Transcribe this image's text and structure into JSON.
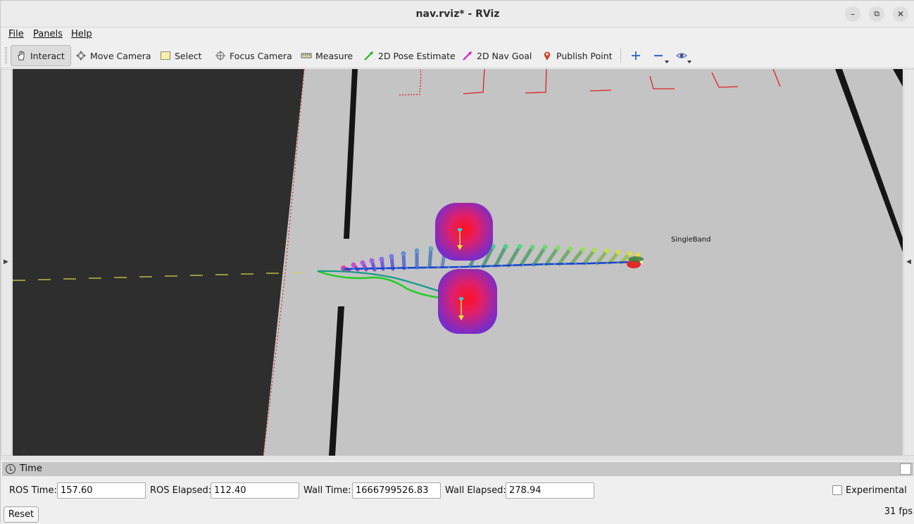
{
  "window": {
    "title": "nav.rviz* - RViz"
  },
  "menubar": {
    "items": [
      "File",
      "Panels",
      "Help"
    ]
  },
  "toolbar": {
    "interact": "Interact",
    "move_camera": "Move Camera",
    "select": "Select",
    "focus_camera": "Focus Camera",
    "measure": "Measure",
    "pose_estimate": "2D Pose Estimate",
    "nav_goal": "2D Nav Goal",
    "publish_point": "Publish Point"
  },
  "viewport": {
    "marker_label": "SingleBand"
  },
  "time_panel": {
    "title": "Time",
    "ros_time_label": "ROS Time:",
    "ros_time": "157.60",
    "ros_elapsed_label": "ROS Elapsed:",
    "ros_elapsed": "112.40",
    "wall_time_label": "Wall Time:",
    "wall_time": "1666799526.83",
    "wall_elapsed_label": "Wall Elapsed:",
    "wall_elapsed": "278.94",
    "experimental_label": "Experimental",
    "reset_label": "Reset",
    "fps": "31 fps"
  },
  "colors": {
    "floor": "#c4c4c4",
    "dark_region": "#2e2e2e",
    "wall": "#111111",
    "laser": "#e02020",
    "path": "#22cc22",
    "plan": "#1a3fd0"
  },
  "icons": [
    "hand-icon",
    "camera-move-icon",
    "select-box-icon",
    "focus-icon",
    "ruler-icon",
    "green-arrow-icon",
    "magenta-arrow-icon",
    "map-pin-icon",
    "plus-icon",
    "minus-icon",
    "eye-icon",
    "clock-icon"
  ]
}
